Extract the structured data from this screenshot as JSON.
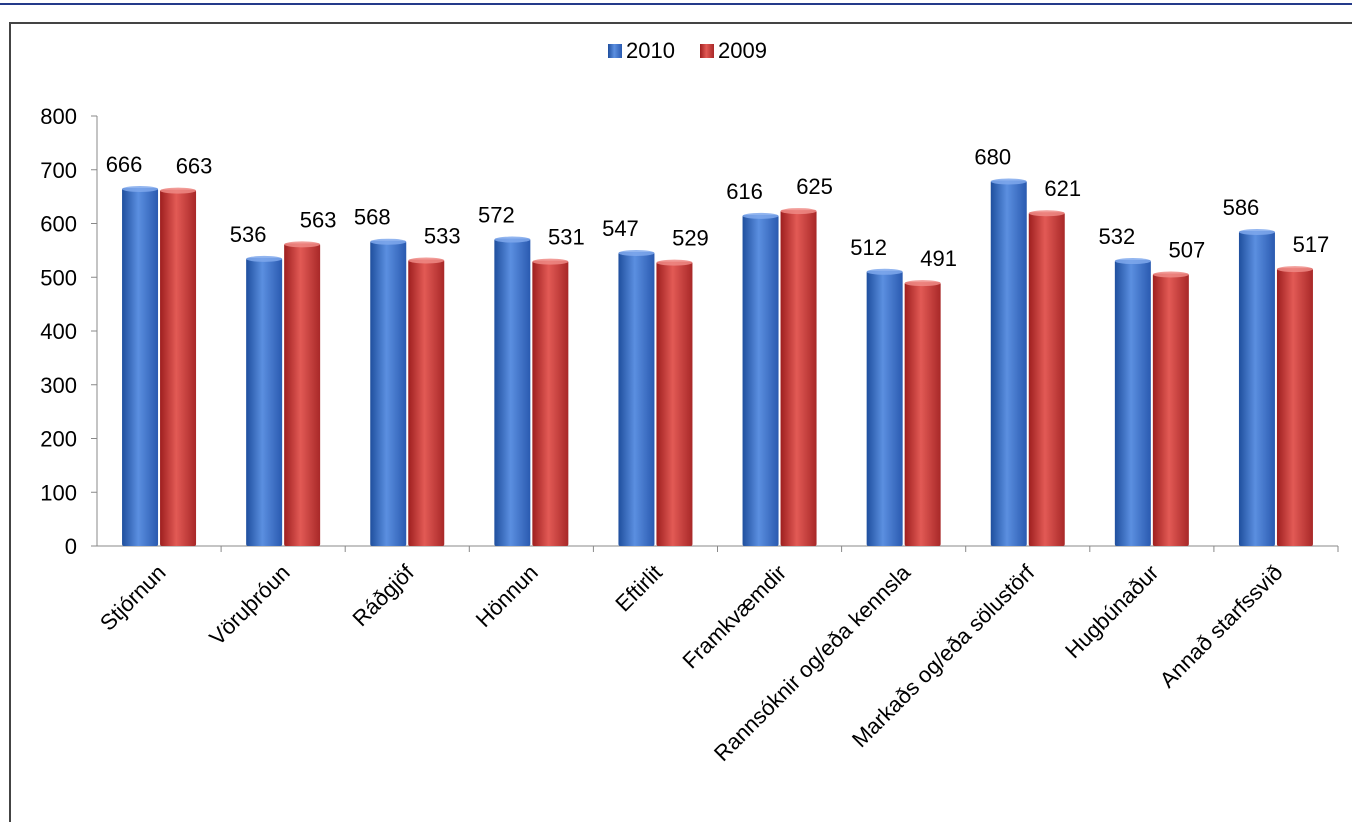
{
  "chart_data": {
    "type": "bar",
    "title": "",
    "xlabel": "",
    "ylabel": "",
    "ylim": [
      0,
      800
    ],
    "yticks": [
      0,
      100,
      200,
      300,
      400,
      500,
      600,
      700,
      800
    ],
    "grid": false,
    "legend_position": "top-center",
    "categories": [
      "Stjórnun",
      "Vöruþróun",
      "Ráðgjöf",
      "Hönnun",
      "Eftirlit",
      "Framkvæmdir",
      "Rannsóknir og/eða kennsla",
      "Markaðs og/eða sölustörf",
      "Hugbúnaður",
      "Annað starfssvið"
    ],
    "series": [
      {
        "name": "2010",
        "color": "#3a6fc8",
        "values": [
          666,
          536,
          568,
          572,
          547,
          616,
          512,
          680,
          532,
          586
        ]
      },
      {
        "name": "2009",
        "color": "#cc3333",
        "values": [
          663,
          563,
          533,
          531,
          529,
          625,
          491,
          621,
          507,
          517
        ]
      }
    ]
  }
}
